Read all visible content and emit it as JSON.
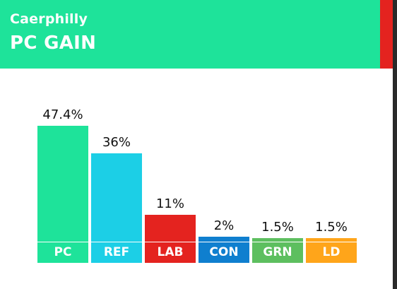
{
  "header": {
    "constituency": "Caerphilly",
    "result": "PC GAIN",
    "color": "#1ee39a",
    "stripe_color": "#e4231f"
  },
  "chart_data": {
    "type": "bar",
    "categories": [
      "PC",
      "REF",
      "LAB",
      "CON",
      "GRN",
      "LD"
    ],
    "values": [
      47.4,
      36,
      11,
      2,
      1.5,
      1.5
    ],
    "value_labels": [
      "47.4%",
      "36%",
      "11%",
      "2%",
      "1.5%",
      "1.5%"
    ],
    "colors": [
      "#1ee39a",
      "#1ccfe6",
      "#e4231f",
      "#0f7fcf",
      "#5dbf5f",
      "#ffa51a"
    ],
    "ylim": [
      0,
      47.4
    ]
  }
}
